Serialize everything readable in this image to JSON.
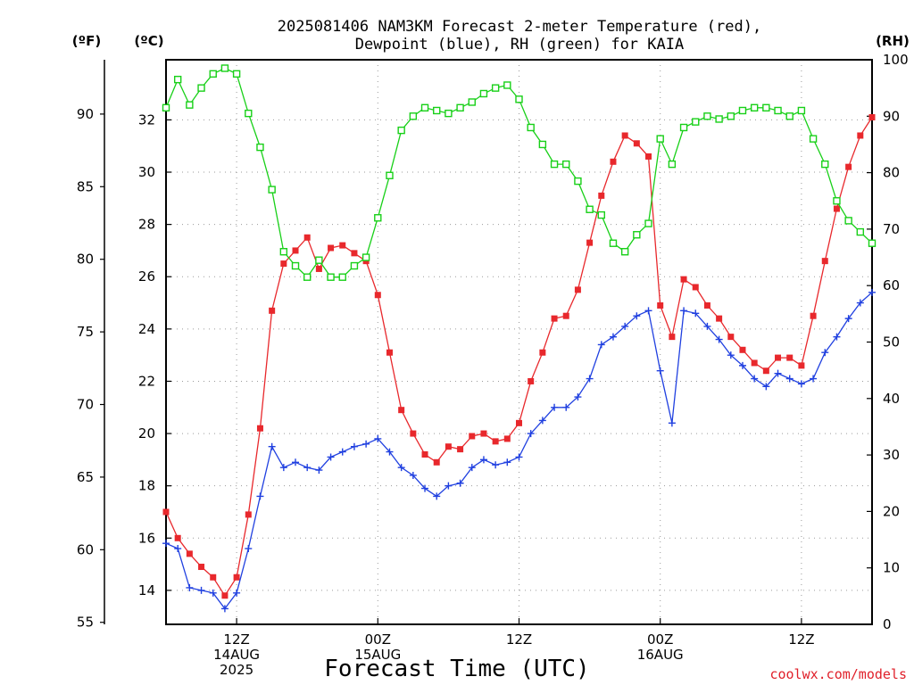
{
  "title_line1": "2025081406 NAM3KM Forecast 2-meter Temperature (red),",
  "title_line2": "Dewpoint (blue), RH (green) for KAIA",
  "unit_f": "(ºF)",
  "unit_c": "(ºC)",
  "unit_rh": "(RH)",
  "xlabel": "Forecast Time (UTC)",
  "credit": "coolwx.com/models",
  "chart_data": {
    "type": "line",
    "title": "2025081406 NAM3KM Forecast 2-meter Temperature (red), Dewpoint (blue), RH (green) for KAIA",
    "xlabel": "Forecast Time (UTC)",
    "x_unit": "forecast hour from 2025-08-14 06Z",
    "xlim": [
      0,
      60
    ],
    "x_ticks": [
      {
        "hour": 6,
        "lines": [
          "12Z",
          "14AUG",
          "2025"
        ]
      },
      {
        "hour": 18,
        "lines": [
          "00Z",
          "15AUG"
        ]
      },
      {
        "hour": 30,
        "lines": [
          "12Z"
        ]
      },
      {
        "hour": 42,
        "lines": [
          "00Z",
          "16AUG"
        ]
      },
      {
        "hour": 54,
        "lines": [
          "12Z"
        ]
      }
    ],
    "y_left_c": {
      "label": "(ºC)",
      "ylim": [
        12.7,
        34.3
      ],
      "ticks": [
        14,
        16,
        18,
        20,
        22,
        24,
        26,
        28,
        30,
        32
      ]
    },
    "y_left_f": {
      "label": "(ºF)",
      "ticks": [
        55,
        60,
        65,
        70,
        75,
        80,
        85,
        90
      ]
    },
    "y_right_rh": {
      "label": "(RH)",
      "ylim": [
        0,
        100
      ],
      "ticks": [
        0,
        10,
        20,
        30,
        40,
        50,
        60,
        70,
        80,
        90,
        100
      ]
    },
    "grid": true,
    "series": [
      {
        "name": "2-meter Temperature",
        "axis": "C",
        "color": "#e8282c",
        "marker": "filled-square",
        "hours": [
          0,
          1,
          2,
          3,
          4,
          5,
          6,
          7,
          8,
          9,
          10,
          11,
          12,
          13,
          14,
          15,
          16,
          17,
          18,
          19,
          20,
          21,
          22,
          23,
          24,
          25,
          26,
          27,
          28,
          29,
          30,
          31,
          32,
          33,
          34,
          35,
          36,
          37,
          38,
          39,
          40,
          41,
          42,
          43,
          44,
          45,
          46,
          47,
          48,
          49,
          50,
          51,
          52,
          53,
          54,
          55,
          56,
          57,
          58,
          59,
          60
        ],
        "values": [
          17.0,
          16.0,
          15.4,
          14.9,
          14.5,
          13.8,
          14.5,
          16.9,
          20.2,
          24.7,
          26.5,
          27.0,
          27.5,
          26.3,
          27.1,
          27.2,
          26.9,
          26.6,
          25.3,
          23.1,
          20.9,
          20.0,
          19.2,
          18.9,
          19.5,
          19.4,
          19.9,
          20.0,
          19.7,
          19.8,
          20.4,
          22.0,
          23.1,
          24.4,
          24.5,
          25.5,
          27.3,
          29.1,
          30.4,
          31.4,
          31.1,
          30.6,
          24.9,
          23.7,
          25.9,
          25.6,
          24.9,
          24.4,
          23.7,
          23.2,
          22.7,
          22.4,
          22.9,
          22.9,
          22.6,
          24.5,
          26.6,
          28.6,
          30.2,
          31.4,
          32.1
        ]
      },
      {
        "name": "Dewpoint",
        "axis": "C",
        "color": "#2040e0",
        "marker": "plus",
        "hours": [
          0,
          1,
          2,
          3,
          4,
          5,
          6,
          7,
          8,
          9,
          10,
          11,
          12,
          13,
          14,
          15,
          16,
          17,
          18,
          19,
          20,
          21,
          22,
          23,
          24,
          25,
          26,
          27,
          28,
          29,
          30,
          31,
          32,
          33,
          34,
          35,
          36,
          37,
          38,
          39,
          40,
          41,
          42,
          43,
          44,
          45,
          46,
          47,
          48,
          49,
          50,
          51,
          52,
          53,
          54,
          55,
          56,
          57,
          58,
          59,
          60
        ],
        "values": [
          15.8,
          15.6,
          14.1,
          14.0,
          13.9,
          13.3,
          13.9,
          15.6,
          17.6,
          19.5,
          18.7,
          18.9,
          18.7,
          18.6,
          19.1,
          19.3,
          19.5,
          19.6,
          19.8,
          19.3,
          18.7,
          18.4,
          17.9,
          17.6,
          18.0,
          18.1,
          18.7,
          19.0,
          18.8,
          18.9,
          19.1,
          20.0,
          20.5,
          21.0,
          21.0,
          21.4,
          22.1,
          23.4,
          23.7,
          24.1,
          24.5,
          24.7,
          22.4,
          20.4,
          24.7,
          24.6,
          24.1,
          23.6,
          23.0,
          22.6,
          22.1,
          21.8,
          22.3,
          22.1,
          21.9,
          22.1,
          23.1,
          23.7,
          24.4,
          25.0,
          25.4
        ]
      },
      {
        "name": "RH",
        "axis": "RH",
        "color": "#18d018",
        "marker": "open-square",
        "hours": [
          0,
          1,
          2,
          3,
          4,
          5,
          6,
          7,
          8,
          9,
          10,
          11,
          12,
          13,
          14,
          15,
          16,
          17,
          18,
          19,
          20,
          21,
          22,
          23,
          24,
          25,
          26,
          27,
          28,
          29,
          30,
          31,
          32,
          33,
          34,
          35,
          36,
          37,
          38,
          39,
          40,
          41,
          42,
          43,
          44,
          45,
          46,
          47,
          48,
          49,
          50,
          51,
          52,
          53,
          54,
          55,
          56,
          57,
          58,
          59,
          60
        ],
        "values": [
          91.5,
          96.5,
          92,
          95,
          97.5,
          98.5,
          97.5,
          90.5,
          84.5,
          77,
          66,
          63.5,
          61.5,
          64.5,
          61.5,
          61.5,
          63.5,
          65,
          72,
          79.5,
          87.5,
          90,
          91.5,
          91,
          90.5,
          91.5,
          92.5,
          94,
          95,
          95.5,
          93,
          88,
          85,
          81.5,
          81.5,
          78.5,
          73.5,
          72.5,
          67.5,
          66,
          69,
          71,
          86,
          81.5,
          88,
          89,
          90,
          89.5,
          90,
          91,
          91.5,
          91.5,
          91,
          90,
          91,
          86,
          81.5,
          75,
          71.5,
          69.5,
          67.5
        ]
      }
    ]
  }
}
